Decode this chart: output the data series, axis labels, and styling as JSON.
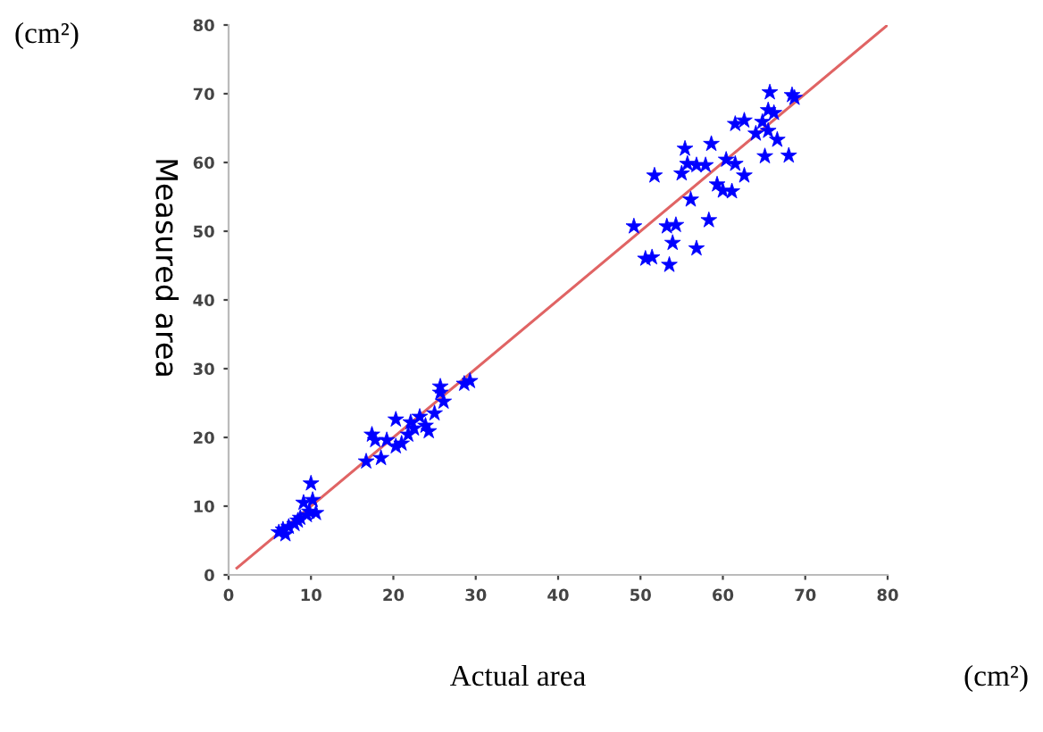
{
  "chart_data": {
    "type": "scatter",
    "xlabel": "Actual area",
    "ylabel": "Measured area",
    "annotations": [
      "(cm²)",
      "(cm²)"
    ],
    "xlim": [
      0,
      80
    ],
    "ylim": [
      0,
      80
    ],
    "xticks": [
      0,
      10,
      20,
      30,
      40,
      50,
      60,
      70,
      80
    ],
    "yticks": [
      0,
      10,
      20,
      30,
      40,
      50,
      60,
      70,
      80
    ],
    "grid": false,
    "legend": false,
    "series": [
      {
        "color": "#0000ff",
        "marker": "star",
        "x": [
          65.7,
          68.4,
          68.7,
          65.5,
          66.2,
          61.5,
          62.6,
          64.8,
          64.0,
          65.5,
          66.6,
          55.4,
          58.6,
          55.7,
          56.8,
          57.9,
          60.4,
          61.5,
          51.7,
          55.0,
          62.6,
          65.1,
          68.0,
          59.3,
          60.0,
          61.1,
          56.1,
          49.2,
          53.2,
          54.3,
          58.3,
          53.9,
          56.8,
          50.6,
          51.4,
          53.5,
          6.1,
          6.6,
          7.3,
          8.0,
          8.7,
          9.5,
          9.8,
          9.1,
          10.2,
          10.0,
          10.6,
          6.9,
          8.4,
          16.7,
          17.8,
          17.4,
          18.5,
          20.3,
          20.3,
          21.0,
          21.8,
          22.5,
          23.2,
          23.9,
          24.3,
          25.0,
          25.7,
          26.1,
          25.7,
          28.6,
          29.3,
          19.2,
          22.1
        ],
        "values": [
          70.2,
          69.8,
          69.4,
          67.6,
          67.2,
          65.6,
          66.1,
          65.9,
          64.2,
          64.6,
          63.3,
          62.0,
          62.7,
          59.8,
          59.6,
          59.6,
          60.4,
          59.8,
          58.1,
          58.4,
          58.1,
          60.9,
          61.0,
          56.8,
          55.9,
          55.8,
          54.6,
          50.7,
          50.7,
          50.9,
          51.6,
          48.3,
          47.5,
          46.0,
          46.2,
          45.1,
          6.2,
          6.6,
          7.0,
          7.4,
          8.3,
          8.7,
          9.2,
          10.5,
          10.9,
          13.3,
          9.0,
          5.9,
          7.9,
          16.5,
          19.6,
          20.4,
          17.0,
          22.6,
          18.7,
          19.1,
          20.4,
          21.3,
          23.0,
          21.7,
          20.9,
          23.5,
          26.5,
          25.2,
          27.4,
          27.8,
          28.2,
          19.6,
          22.2
        ]
      },
      {
        "type": "line",
        "color": "#e06464",
        "marker": "none",
        "line_style": "solid",
        "x": [
          1,
          80
        ],
        "values": [
          1,
          80
        ]
      }
    ]
  }
}
